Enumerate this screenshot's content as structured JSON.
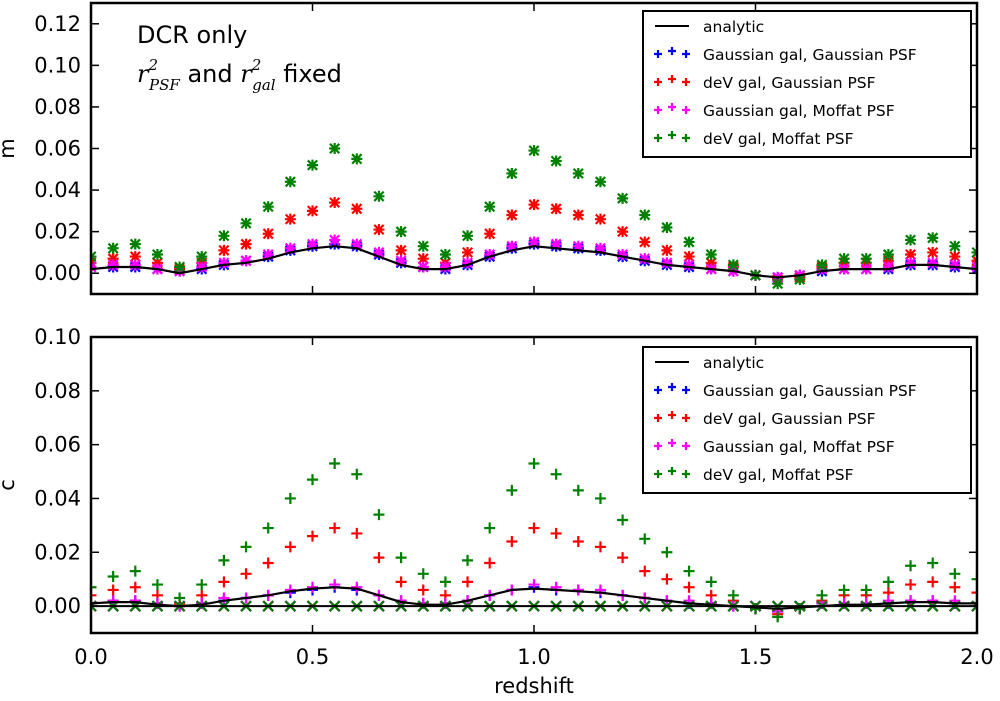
{
  "chart_data": [
    {
      "type": "scatter",
      "panel": "top",
      "ylabel": "m",
      "xlabel": "",
      "xlim": [
        0.0,
        2.0
      ],
      "ylim": [
        -0.01,
        0.13
      ],
      "yticks": [
        "0.00",
        "0.02",
        "0.04",
        "0.06",
        "0.08",
        "0.10",
        "0.12"
      ],
      "ytick_values": [
        0.0,
        0.02,
        0.04,
        0.06,
        0.08,
        0.1,
        0.12
      ],
      "xticks": [
        0.0,
        0.5,
        1.0,
        1.5,
        2.0
      ],
      "annotation": {
        "line1": "DCR only",
        "line2_r": "r",
        "line2_sup": "2",
        "line2_sub1": "PSF",
        "line2_mid": " and ",
        "line2_sub2": "gal",
        "line2_end": " fixed"
      },
      "legend_placement": "top-right",
      "x": [
        0.0,
        0.05,
        0.1,
        0.15,
        0.2,
        0.25,
        0.3,
        0.35,
        0.4,
        0.45,
        0.5,
        0.55,
        0.6,
        0.65,
        0.7,
        0.75,
        0.8,
        0.85,
        0.9,
        0.95,
        1.0,
        1.05,
        1.1,
        1.15,
        1.2,
        1.25,
        1.3,
        1.35,
        1.4,
        1.45,
        1.5,
        1.55,
        1.6,
        1.65,
        1.7,
        1.75,
        1.8,
        1.85,
        1.9,
        1.95,
        2.0
      ],
      "analytic": [
        0.002,
        0.003,
        0.003,
        0.002,
        0.0,
        0.002,
        0.004,
        0.005,
        0.007,
        0.01,
        0.012,
        0.013,
        0.012,
        0.008,
        0.004,
        0.002,
        0.002,
        0.004,
        0.008,
        0.011,
        0.013,
        0.012,
        0.011,
        0.01,
        0.008,
        0.006,
        0.004,
        0.003,
        0.002,
        0.001,
        -0.001,
        -0.002,
        -0.001,
        0.001,
        0.002,
        0.002,
        0.002,
        0.004,
        0.004,
        0.003,
        0.002
      ],
      "series": [
        {
          "name": "Gaussian gal, Gaussian PSF",
          "color": "#0000ff",
          "values": [
            0.003,
            0.003,
            0.003,
            0.002,
            0.001,
            0.002,
            0.004,
            0.006,
            0.008,
            0.011,
            0.013,
            0.014,
            0.013,
            0.009,
            0.005,
            0.003,
            0.002,
            0.004,
            0.008,
            0.012,
            0.014,
            0.013,
            0.012,
            0.011,
            0.008,
            0.006,
            0.004,
            0.003,
            0.002,
            0.001,
            -0.001,
            -0.002,
            -0.001,
            0.001,
            0.002,
            0.002,
            0.002,
            0.004,
            0.004,
            0.003,
            0.002
          ]
        },
        {
          "name": "deV gal, Gaussian PSF",
          "color": "#ff0000",
          "values": [
            0.005,
            0.007,
            0.008,
            0.005,
            0.002,
            0.005,
            0.011,
            0.014,
            0.019,
            0.026,
            0.03,
            0.034,
            0.031,
            0.021,
            0.011,
            0.007,
            0.005,
            0.01,
            0.019,
            0.028,
            0.033,
            0.031,
            0.028,
            0.026,
            0.02,
            0.015,
            0.011,
            0.008,
            0.005,
            0.003,
            -0.001,
            -0.003,
            -0.002,
            0.003,
            0.005,
            0.005,
            0.006,
            0.009,
            0.01,
            0.008,
            0.006
          ]
        },
        {
          "name": "Gaussian gal, Moffat PSF",
          "color": "#ff00ff",
          "values": [
            0.003,
            0.004,
            0.004,
            0.002,
            0.001,
            0.003,
            0.005,
            0.006,
            0.009,
            0.012,
            0.014,
            0.016,
            0.014,
            0.01,
            0.006,
            0.003,
            0.003,
            0.005,
            0.009,
            0.013,
            0.015,
            0.014,
            0.013,
            0.012,
            0.009,
            0.007,
            0.005,
            0.004,
            0.002,
            0.001,
            -0.001,
            -0.002,
            -0.001,
            0.002,
            0.002,
            0.002,
            0.003,
            0.005,
            0.005,
            0.004,
            0.003
          ]
        },
        {
          "name": "deV gal, Moffat PSF",
          "color": "#008000",
          "values": [
            0.008,
            0.012,
            0.014,
            0.009,
            0.003,
            0.008,
            0.018,
            0.024,
            0.032,
            0.044,
            0.052,
            0.06,
            0.055,
            0.037,
            0.02,
            0.013,
            0.009,
            0.018,
            0.032,
            0.048,
            0.059,
            0.054,
            0.048,
            0.044,
            0.036,
            0.028,
            0.022,
            0.015,
            0.009,
            0.004,
            -0.001,
            -0.005,
            -0.003,
            0.004,
            0.007,
            0.007,
            0.009,
            0.016,
            0.017,
            0.013,
            0.01
          ]
        }
      ]
    },
    {
      "type": "scatter",
      "panel": "bottom",
      "ylabel": "c",
      "xlabel": "redshift",
      "xlim": [
        0.0,
        2.0
      ],
      "ylim": [
        -0.01,
        0.1
      ],
      "yticks": [
        "0.00",
        "0.02",
        "0.04",
        "0.06",
        "0.08",
        "0.10"
      ],
      "ytick_values": [
        0.0,
        0.02,
        0.04,
        0.06,
        0.08,
        0.1
      ],
      "xticks": [
        "0.0",
        "0.5",
        "1.0",
        "1.5",
        "2.0"
      ],
      "xtick_values": [
        0.0,
        0.5,
        1.0,
        1.5,
        2.0
      ],
      "legend_placement": "top-right",
      "x": [
        0.0,
        0.05,
        0.1,
        0.15,
        0.2,
        0.25,
        0.3,
        0.35,
        0.4,
        0.45,
        0.5,
        0.55,
        0.6,
        0.65,
        0.7,
        0.75,
        0.8,
        0.85,
        0.9,
        0.95,
        1.0,
        1.05,
        1.1,
        1.15,
        1.2,
        1.25,
        1.3,
        1.35,
        1.4,
        1.45,
        1.5,
        1.55,
        1.6,
        1.65,
        1.7,
        1.75,
        1.8,
        1.85,
        1.9,
        1.95,
        2.0
      ],
      "analytic": [
        0.001,
        0.0015,
        0.0015,
        0.0005,
        0.0,
        0.0005,
        0.002,
        0.003,
        0.004,
        0.0055,
        0.0065,
        0.007,
        0.0065,
        0.004,
        0.0015,
        0.0005,
        0.0005,
        0.002,
        0.004,
        0.006,
        0.0065,
        0.006,
        0.0055,
        0.005,
        0.004,
        0.003,
        0.002,
        0.001,
        0.0005,
        0.0,
        -0.0005,
        -0.001,
        -0.0005,
        0.0,
        0.0005,
        0.0005,
        0.001,
        0.0015,
        0.0015,
        0.001,
        0.001
      ],
      "analytic_zero": 0.0,
      "series": [
        {
          "name": "Gaussian gal, Gaussian PSF",
          "color": "#0000ff",
          "values": [
            0.001,
            0.002,
            0.002,
            0.001,
            0.0,
            0.001,
            0.002,
            0.003,
            0.004,
            0.005,
            0.006,
            0.007,
            0.006,
            0.004,
            0.002,
            0.001,
            0.001,
            0.002,
            0.004,
            0.006,
            0.007,
            0.006,
            0.006,
            0.005,
            0.004,
            0.003,
            0.002,
            0.001,
            0.001,
            0.0,
            -0.001,
            -0.002,
            -0.001,
            0.001,
            0.001,
            0.001,
            0.001,
            0.002,
            0.002,
            0.001,
            0.001
          ]
        },
        {
          "name": "deV gal, Gaussian PSF",
          "color": "#ff0000",
          "values": [
            0.004,
            0.006,
            0.007,
            0.004,
            0.001,
            0.004,
            0.009,
            0.012,
            0.016,
            0.022,
            0.026,
            0.029,
            0.027,
            0.018,
            0.009,
            0.006,
            0.004,
            0.009,
            0.016,
            0.024,
            0.029,
            0.027,
            0.024,
            0.022,
            0.018,
            0.013,
            0.01,
            0.007,
            0.004,
            0.002,
            -0.001,
            -0.003,
            -0.001,
            0.002,
            0.004,
            0.004,
            0.005,
            0.008,
            0.009,
            0.007,
            0.005
          ]
        },
        {
          "name": "Gaussian gal, Moffat PSF",
          "color": "#ff00ff",
          "values": [
            0.001,
            0.002,
            0.002,
            0.001,
            0.0,
            0.001,
            0.003,
            0.003,
            0.004,
            0.006,
            0.007,
            0.008,
            0.007,
            0.004,
            0.002,
            0.001,
            0.001,
            0.002,
            0.004,
            0.006,
            0.008,
            0.007,
            0.006,
            0.006,
            0.004,
            0.003,
            0.002,
            0.002,
            0.001,
            0.0,
            -0.001,
            -0.002,
            -0.001,
            0.001,
            0.001,
            0.001,
            0.002,
            0.002,
            0.002,
            0.002,
            0.001
          ]
        },
        {
          "name": "deV gal, Moffat PSF",
          "color": "#008000",
          "values": [
            0.007,
            0.011,
            0.013,
            0.008,
            0.003,
            0.008,
            0.017,
            0.022,
            0.029,
            0.04,
            0.047,
            0.053,
            0.049,
            0.034,
            0.018,
            0.012,
            0.009,
            0.017,
            0.029,
            0.043,
            0.053,
            0.049,
            0.043,
            0.04,
            0.032,
            0.025,
            0.02,
            0.013,
            0.009,
            0.004,
            -0.001,
            -0.004,
            -0.001,
            0.004,
            0.006,
            0.006,
            0.009,
            0.015,
            0.016,
            0.012,
            0.01
          ]
        }
      ],
      "cross_series_value": 0.0
    }
  ],
  "legend": {
    "items": [
      {
        "label": "analytic",
        "color": "#000000",
        "kind": "line"
      },
      {
        "label": "Gaussian gal, Gaussian PSF",
        "color": "#0000ff",
        "kind": "plus"
      },
      {
        "label": "deV gal, Gaussian PSF",
        "color": "#ff0000",
        "kind": "plus"
      },
      {
        "label": "Gaussian gal, Moffat PSF",
        "color": "#ff00ff",
        "kind": "plus"
      },
      {
        "label": "deV gal, Moffat PSF",
        "color": "#008000",
        "kind": "plus"
      }
    ]
  }
}
